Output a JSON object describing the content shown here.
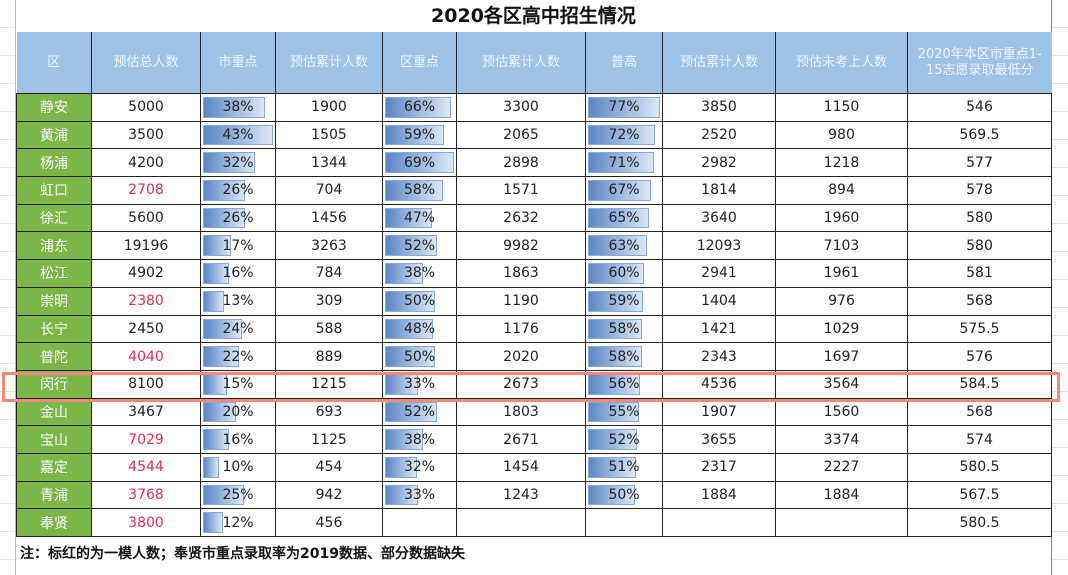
{
  "title": "2020各区高中招生情况",
  "headers": [
    "区",
    "预估总人数",
    "市重点",
    "预估累计人数",
    "区重点",
    "预估累计人数",
    "普高",
    "预估累计人数",
    "预估未考上人数",
    "2020年本区市重点1-15志愿录取最低分"
  ],
  "colors": {
    "header_bg": "#9dc3e6",
    "district_bg": "#7ab648",
    "red_text": "#e0304a",
    "bar": "#5b86c6",
    "highlight": "#f28a78"
  },
  "highlighted_district": "闵行",
  "rows": [
    {
      "district": "静安",
      "total": "5000",
      "red": false,
      "city_key": "38%",
      "cum1": "1900",
      "dist_key": "66%",
      "cum2": "3300",
      "general": "77%",
      "cum3": "3850",
      "not_admitted": "1150",
      "min_score": "546"
    },
    {
      "district": "黄浦",
      "total": "3500",
      "red": false,
      "city_key": "43%",
      "cum1": "1505",
      "dist_key": "59%",
      "cum2": "2065",
      "general": "72%",
      "cum3": "2520",
      "not_admitted": "980",
      "min_score": "569.5"
    },
    {
      "district": "杨浦",
      "total": "4200",
      "red": false,
      "city_key": "32%",
      "cum1": "1344",
      "dist_key": "69%",
      "cum2": "2898",
      "general": "71%",
      "cum3": "2982",
      "not_admitted": "1218",
      "min_score": "577"
    },
    {
      "district": "虹口",
      "total": "2708",
      "red": true,
      "city_key": "26%",
      "cum1": "704",
      "dist_key": "58%",
      "cum2": "1571",
      "general": "67%",
      "cum3": "1814",
      "not_admitted": "894",
      "min_score": "578"
    },
    {
      "district": "徐汇",
      "total": "5600",
      "red": false,
      "city_key": "26%",
      "cum1": "1456",
      "dist_key": "47%",
      "cum2": "2632",
      "general": "65%",
      "cum3": "3640",
      "not_admitted": "1960",
      "min_score": "580"
    },
    {
      "district": "浦东",
      "total": "19196",
      "red": false,
      "city_key": "17%",
      "cum1": "3263",
      "dist_key": "52%",
      "cum2": "9982",
      "general": "63%",
      "cum3": "12093",
      "not_admitted": "7103",
      "min_score": "580"
    },
    {
      "district": "松江",
      "total": "4902",
      "red": false,
      "city_key": "16%",
      "cum1": "784",
      "dist_key": "38%",
      "cum2": "1863",
      "general": "60%",
      "cum3": "2941",
      "not_admitted": "1961",
      "min_score": "581"
    },
    {
      "district": "崇明",
      "total": "2380",
      "red": true,
      "city_key": "13%",
      "cum1": "309",
      "dist_key": "50%",
      "cum2": "1190",
      "general": "59%",
      "cum3": "1404",
      "not_admitted": "976",
      "min_score": "568"
    },
    {
      "district": "长宁",
      "total": "2450",
      "red": false,
      "city_key": "24%",
      "cum1": "588",
      "dist_key": "48%",
      "cum2": "1176",
      "general": "58%",
      "cum3": "1421",
      "not_admitted": "1029",
      "min_score": "575.5"
    },
    {
      "district": "普陀",
      "total": "4040",
      "red": true,
      "city_key": "22%",
      "cum1": "889",
      "dist_key": "50%",
      "cum2": "2020",
      "general": "58%",
      "cum3": "2343",
      "not_admitted": "1697",
      "min_score": "576"
    },
    {
      "district": "闵行",
      "total": "8100",
      "red": false,
      "city_key": "15%",
      "cum1": "1215",
      "dist_key": "33%",
      "cum2": "2673",
      "general": "56%",
      "cum3": "4536",
      "not_admitted": "3564",
      "min_score": "584.5"
    },
    {
      "district": "金山",
      "total": "3467",
      "red": false,
      "city_key": "20%",
      "cum1": "693",
      "dist_key": "52%",
      "cum2": "1803",
      "general": "55%",
      "cum3": "1907",
      "not_admitted": "1560",
      "min_score": "568"
    },
    {
      "district": "宝山",
      "total": "7029",
      "red": true,
      "city_key": "16%",
      "cum1": "1125",
      "dist_key": "38%",
      "cum2": "2671",
      "general": "52%",
      "cum3": "3655",
      "not_admitted": "3374",
      "min_score": "574"
    },
    {
      "district": "嘉定",
      "total": "4544",
      "red": true,
      "city_key": "10%",
      "cum1": "454",
      "dist_key": "32%",
      "cum2": "1454",
      "general": "51%",
      "cum3": "2317",
      "not_admitted": "2227",
      "min_score": "580.5"
    },
    {
      "district": "青浦",
      "total": "3768",
      "red": true,
      "city_key": "25%",
      "cum1": "942",
      "dist_key": "33%",
      "cum2": "1243",
      "general": "50%",
      "cum3": "1884",
      "not_admitted": "1884",
      "min_score": "567.5"
    },
    {
      "district": "奉贤",
      "total": "3800",
      "red": true,
      "city_key": "12%",
      "cum1": "456",
      "dist_key": "",
      "cum2": "",
      "general": "",
      "cum3": "",
      "not_admitted": "",
      "min_score": "580.5"
    }
  ],
  "note": "注：标红的为一模人数；奉贤市重点录取率为2019数据、部分数据缺失"
}
